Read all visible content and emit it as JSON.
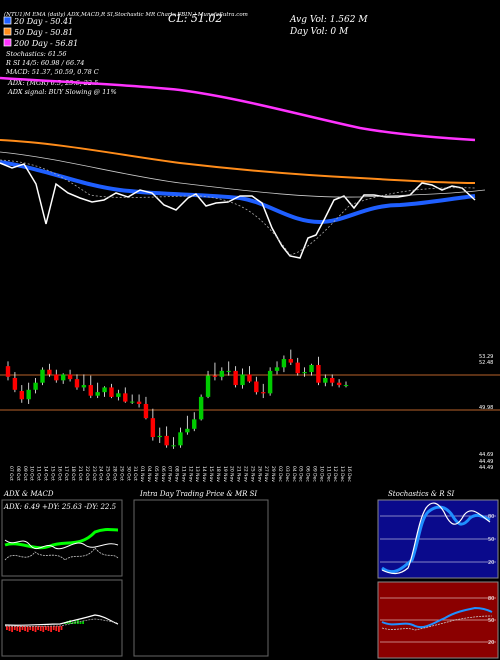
{
  "header": {
    "line1": "(NTU1)M EMA (daily) ADX,MACD,R SI,Stochastic MR   Charts FBIN   ) MunafaSutra.com",
    "close": "CL: 51.02",
    "avg_vol": "Avg Vol: 1.562  M",
    "day_vol": "Day Vol: 0   M"
  },
  "legend": {
    "ema20": "20  Day - 50.41",
    "ema50": "50  Day - 50.81",
    "ema200": "200  Day - 56.81",
    "stoch": "Stochastics: 61.56",
    "rsi": "R            SI 14/5: 60.98 / 66.74",
    "macd": "MACD: 51.37, 50.59, 0.78  C",
    "adx": "ADX:                    (MGR) 6.5, 25.6, 22.5",
    "signal": "ADX  signal:                 BUY Slowing @ 11%"
  },
  "candle_panel": {
    "price_ticks": [
      "53.29",
      "52.48",
      "49.98",
      "44.69",
      "44.49",
      "44.49"
    ],
    "dates": [
      "07 Oct",
      "08 Oct",
      "09 Oct",
      "10 Oct",
      "11 Oct",
      "14 Oct",
      "15 Oct",
      "16 Oct",
      "17 Oct",
      "18 Oct",
      "21 Oct",
      "22 Oct",
      "23 Oct",
      "24 Oct",
      "25 Oct",
      "28 Oct",
      "29 Oct",
      "30 Oct",
      "31 Oct",
      "01 Nov",
      "04 Nov",
      "05 Nov",
      "06 Nov",
      "07 Nov",
      "08 Nov",
      "11 Nov",
      "12 Nov",
      "13 Nov",
      "14 Nov",
      "15 Nov",
      "18 Nov",
      "19 Nov",
      "20 Nov",
      "21 Nov",
      "22 Nov",
      "25 Nov",
      "26 Nov",
      "27 Nov",
      "29 Nov",
      "02 Dec",
      "03 Dec",
      "04 Dec",
      "05 Dec",
      "06 Dec",
      "09 Dec",
      "10 Dec",
      "11 Dec",
      "12 Dec",
      "13 Dec",
      "16 Dec"
    ]
  },
  "panels": {
    "adx_title": "ADX  & MACD",
    "adx_values": "ADX: 6.49  +DY: 25.63  -DY: 22.5",
    "intra_title": "Intra  Day Trading Price  & MR                SI",
    "stoch_title": "Stochastics & R          SI",
    "stoch_ticks": [
      "80",
      "50",
      "20"
    ],
    "rsi_ticks": [
      "80",
      "50",
      "20"
    ]
  },
  "colors": {
    "up": "#00cc00",
    "down": "#ff0000",
    "ema20": "#1f5fff",
    "ema50": "#ff8c1a",
    "ema200": "#ff33ff"
  },
  "chart_data": {
    "type": "candlestick",
    "title": "FBIN daily",
    "x": [
      "07 Oct",
      "08 Oct",
      "09 Oct",
      "10 Oct",
      "11 Oct",
      "14 Oct",
      "15 Oct",
      "16 Oct",
      "17 Oct",
      "18 Oct",
      "21 Oct",
      "22 Oct",
      "23 Oct",
      "24 Oct",
      "25 Oct",
      "28 Oct",
      "29 Oct",
      "30 Oct",
      "31 Oct",
      "01 Nov",
      "04 Nov",
      "05 Nov",
      "06 Nov",
      "07 Nov",
      "08 Nov",
      "11 Nov",
      "12 Nov",
      "13 Nov",
      "14 Nov",
      "15 Nov",
      "18 Nov",
      "19 Nov",
      "20 Nov",
      "21 Nov",
      "22 Nov",
      "25 Nov",
      "26 Nov",
      "27 Nov",
      "29 Nov",
      "02 Dec",
      "03 Dec",
      "04 Dec",
      "05 Dec",
      "06 Dec",
      "09 Dec",
      "10 Dec",
      "11 Dec",
      "12 Dec",
      "13 Dec",
      "16 Dec"
    ],
    "open": [
      52.6,
      51.6,
      50.5,
      49.8,
      50.6,
      51.2,
      52.3,
      51.9,
      51.4,
      51.9,
      51.5,
      50.8,
      51.0,
      50.1,
      50.4,
      50.8,
      50.0,
      50.3,
      49.6,
      49.6,
      49.4,
      48.2,
      46.6,
      46.7,
      45.9,
      45.9,
      47.0,
      47.3,
      48.1,
      50.0,
      51.8,
      51.7,
      52.2,
      52.2,
      51.0,
      51.9,
      51.3,
      50.4,
      50.3,
      52.2,
      52.5,
      53.2,
      52.9,
      52.0,
      52.1,
      52.7,
      51.2,
      51.6,
      51.2,
      51.0
    ],
    "high": [
      53.0,
      52.1,
      51.0,
      51.2,
      51.6,
      52.5,
      52.8,
      52.3,
      52.0,
      52.3,
      51.9,
      51.9,
      51.8,
      51.2,
      50.9,
      51.1,
      50.6,
      50.8,
      50.2,
      50.2,
      50.0,
      49.0,
      47.4,
      47.5,
      46.6,
      47.4,
      48.4,
      48.7,
      50.2,
      52.2,
      52.9,
      52.5,
      53.0,
      52.6,
      52.4,
      52.6,
      51.7,
      51.1,
      52.5,
      53.0,
      53.5,
      54.0,
      53.3,
      52.5,
      52.8,
      53.4,
      51.9,
      51.9,
      51.5,
      51.3
    ],
    "low": [
      51.4,
      50.4,
      49.5,
      49.4,
      50.3,
      51.0,
      51.7,
      51.2,
      51.1,
      51.3,
      50.6,
      50.5,
      49.9,
      49.9,
      50.0,
      49.9,
      49.7,
      49.5,
      49.4,
      49.1,
      48.1,
      46.3,
      46.1,
      45.7,
      45.6,
      45.7,
      46.8,
      47.1,
      48.0,
      49.9,
      51.4,
      51.4,
      51.8,
      50.8,
      50.7,
      51.2,
      50.2,
      49.9,
      50.1,
      51.9,
      52.1,
      52.7,
      51.8,
      51.7,
      51.8,
      51.0,
      50.9,
      50.9,
      50.8,
      50.8
    ],
    "close": [
      51.7,
      50.6,
      49.8,
      50.6,
      51.2,
      52.3,
      51.9,
      51.4,
      51.9,
      51.5,
      50.8,
      51.0,
      50.1,
      50.4,
      50.8,
      50.0,
      50.3,
      49.6,
      49.6,
      49.4,
      48.2,
      46.6,
      46.7,
      45.9,
      45.9,
      47.0,
      47.3,
      48.1,
      50.0,
      51.8,
      51.7,
      52.2,
      52.2,
      51.0,
      51.9,
      51.3,
      50.4,
      50.3,
      52.2,
      52.5,
      53.2,
      52.9,
      52.0,
      52.1,
      52.7,
      51.2,
      51.6,
      51.2,
      51.0,
      51.0
    ],
    "ylim": [
      44.49,
      53.29
    ]
  }
}
